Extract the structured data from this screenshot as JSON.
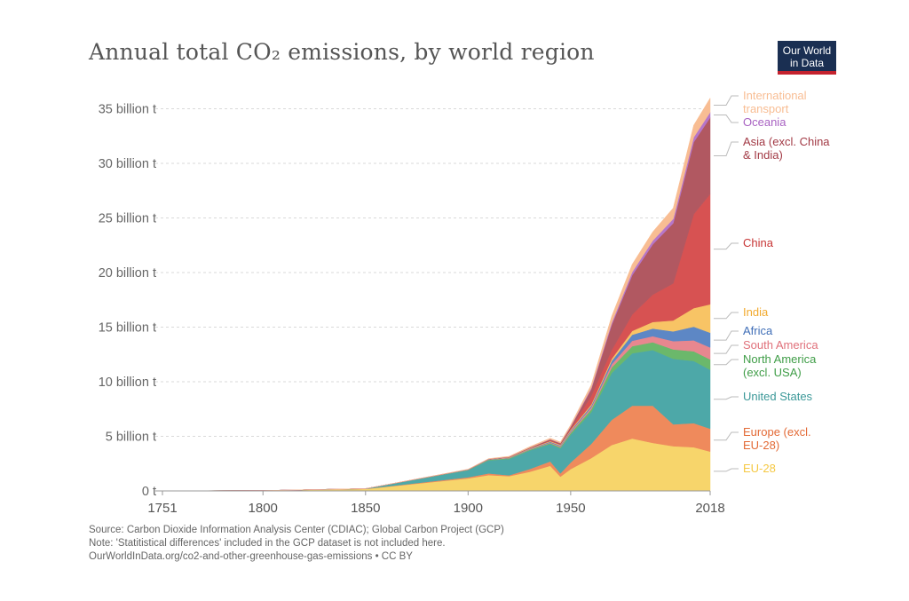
{
  "title": "Annual total CO₂ emissions, by world region",
  "logo": {
    "line1": "Our World",
    "line2": "in Data"
  },
  "footer": {
    "source": "Source: Carbon Dioxide Information Analysis Center (CDIAC); Global Carbon Project (GCP)",
    "note": "Note: 'Statitistical differences' included in the GCP dataset is not included here.",
    "url": "OurWorldInData.org/co2-and-other-greenhouse-gas-emissions • CC BY"
  },
  "chart_data": {
    "type": "area",
    "stacked": true,
    "x": [
      1751,
      1800,
      1850,
      1900,
      1910,
      1920,
      1930,
      1940,
      1945,
      1950,
      1960,
      1970,
      1980,
      1990,
      2000,
      2010,
      2018
    ],
    "xticks": [
      "1751",
      "1800",
      "1850",
      "1900",
      "1950",
      "2018"
    ],
    "yticks": [
      "0 t",
      "5 billion t",
      "10 billion t",
      "15 billion t",
      "20 billion t",
      "25 billion t",
      "30 billion t",
      "35 billion t"
    ],
    "ylim": [
      0,
      36500000000
    ],
    "grid": true,
    "series": [
      {
        "name": "EU-28",
        "color": "#f7d56b",
        "values": [
          0.01,
          0.03,
          0.18,
          1.15,
          1.45,
          1.35,
          1.75,
          2.3,
          1.3,
          2.0,
          3.0,
          4.2,
          4.8,
          4.4,
          4.1,
          4.0,
          3.6
        ]
      },
      {
        "name": "Europe (excl. EU-28)",
        "color": "#ef8a5c",
        "values": [
          0.0,
          0.0,
          0.01,
          0.1,
          0.15,
          0.08,
          0.25,
          0.4,
          0.3,
          0.6,
          1.3,
          2.3,
          3.0,
          3.4,
          2.0,
          2.2,
          2.1
        ]
      },
      {
        "name": "United States",
        "color": "#4da8a8",
        "values": [
          0.0,
          0.0,
          0.02,
          0.65,
          1.2,
          1.5,
          1.7,
          1.6,
          2.3,
          2.55,
          2.9,
          4.3,
          4.8,
          5.1,
          6.0,
          5.7,
          5.4
        ]
      },
      {
        "name": "North America (excl. USA)",
        "color": "#6bb86b",
        "values": [
          0.0,
          0.0,
          0.0,
          0.03,
          0.05,
          0.06,
          0.07,
          0.08,
          0.1,
          0.17,
          0.26,
          0.5,
          0.65,
          0.72,
          0.86,
          0.89,
          0.94
        ]
      },
      {
        "name": "South America",
        "color": "#e8878f",
        "values": [
          0.0,
          0.0,
          0.0,
          0.01,
          0.02,
          0.03,
          0.04,
          0.06,
          0.08,
          0.1,
          0.18,
          0.3,
          0.5,
          0.55,
          0.75,
          1.0,
          1.1
        ]
      },
      {
        "name": "Africa",
        "color": "#5d87c5",
        "values": [
          0.0,
          0.0,
          0.0,
          0.01,
          0.02,
          0.03,
          0.04,
          0.06,
          0.08,
          0.1,
          0.15,
          0.3,
          0.55,
          0.7,
          0.9,
          1.25,
          1.35
        ]
      },
      {
        "name": "India",
        "color": "#f8c465",
        "values": [
          0.0,
          0.0,
          0.0,
          0.01,
          0.02,
          0.03,
          0.04,
          0.06,
          0.07,
          0.08,
          0.12,
          0.2,
          0.35,
          0.6,
          1.0,
          1.7,
          2.6
        ]
      },
      {
        "name": "China",
        "color": "#d75252",
        "values": [
          0.0,
          0.0,
          0.0,
          0.0,
          0.0,
          0.0,
          0.02,
          0.04,
          0.04,
          0.08,
          0.8,
          0.8,
          1.5,
          2.5,
          3.4,
          8.6,
          10.1
        ]
      },
      {
        "name": "Asia (excl. China & India)",
        "color": "#b15861",
        "values": [
          0.0,
          0.0,
          0.0,
          0.01,
          0.02,
          0.04,
          0.06,
          0.12,
          0.1,
          0.2,
          0.6,
          2.3,
          3.6,
          4.6,
          5.5,
          6.6,
          7.0
        ]
      },
      {
        "name": "Oceania",
        "color": "#b676c9",
        "values": [
          0.0,
          0.0,
          0.0,
          0.0,
          0.0,
          0.0,
          0.0,
          0.01,
          0.01,
          0.03,
          0.1,
          0.2,
          0.3,
          0.35,
          0.4,
          0.45,
          0.48
        ]
      },
      {
        "name": "International transport",
        "color": "#f8bd93",
        "values": [
          0.0,
          0.0,
          0.0,
          0.02,
          0.03,
          0.05,
          0.08,
          0.1,
          0.1,
          0.15,
          0.3,
          0.6,
          0.7,
          0.8,
          1.0,
          1.1,
          1.3
        ]
      }
    ],
    "labels": [
      {
        "lines": [
          "International",
          "transport"
        ],
        "color": "#f8bd93"
      },
      {
        "lines": [
          "Oceania"
        ],
        "color": "#a862c2"
      },
      {
        "lines": [
          "Asia (excl. China",
          "& India)"
        ],
        "color": "#a23a45"
      },
      {
        "lines": [
          "China"
        ],
        "color": "#c73535"
      },
      {
        "lines": [
          "India"
        ],
        "color": "#f2aa2e"
      },
      {
        "lines": [
          "Africa"
        ],
        "color": "#3f6eb7"
      },
      {
        "lines": [
          "South America"
        ],
        "color": "#e0707a"
      },
      {
        "lines": [
          "North America",
          "(excl. USA)"
        ],
        "color": "#3f9d47"
      },
      {
        "lines": [
          "United States"
        ],
        "color": "#3b9898"
      },
      {
        "lines": [
          "Europe (excl.",
          "EU-28)"
        ],
        "color": "#e36a36"
      },
      {
        "lines": [
          "EU-28"
        ],
        "color": "#f5c842"
      }
    ]
  }
}
